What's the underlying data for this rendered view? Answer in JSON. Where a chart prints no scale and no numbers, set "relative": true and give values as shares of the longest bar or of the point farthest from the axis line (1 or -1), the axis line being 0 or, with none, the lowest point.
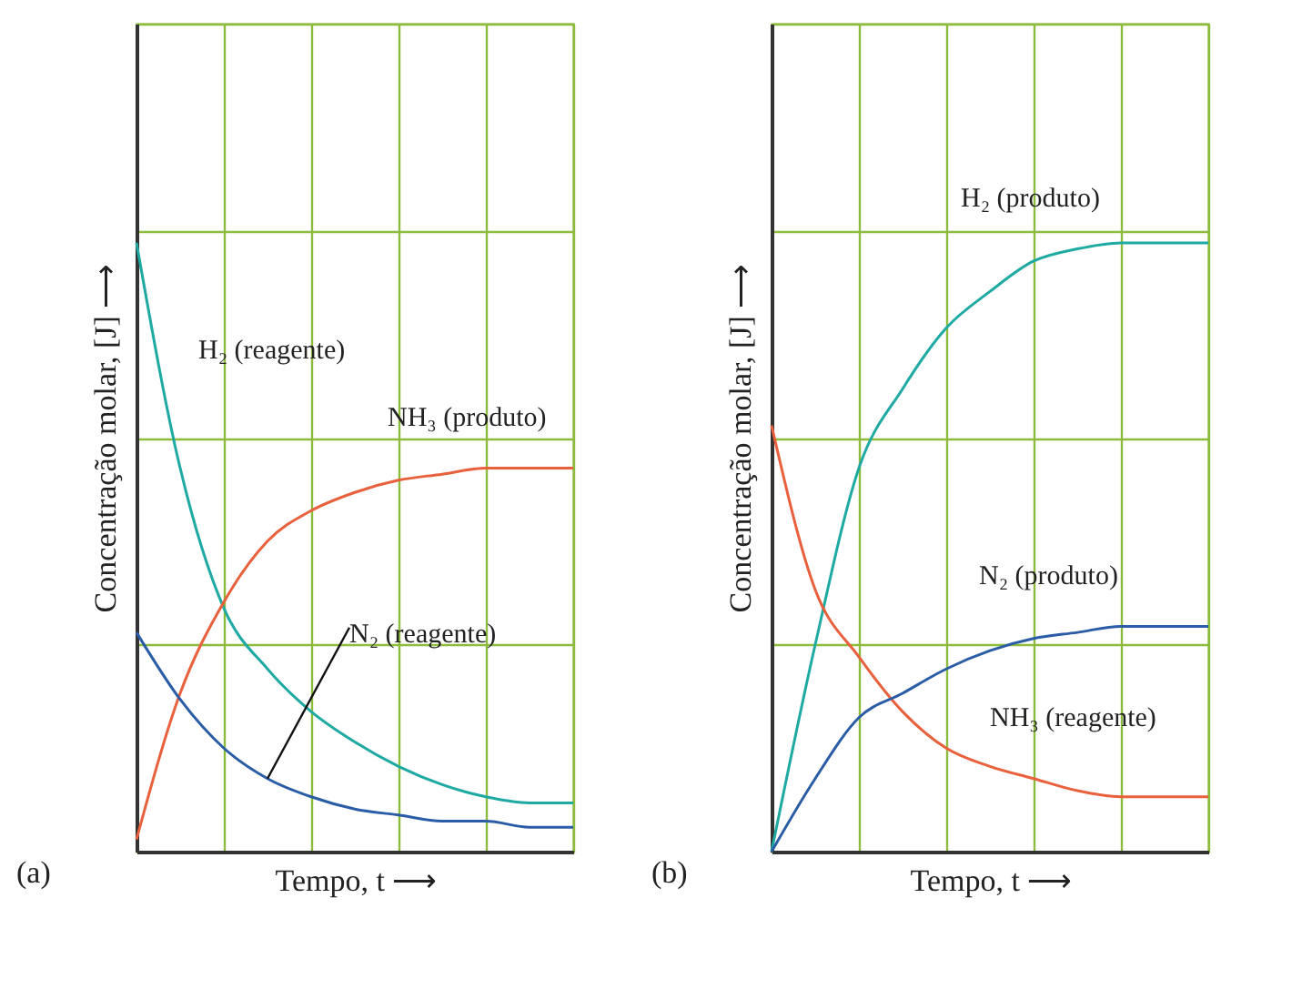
{
  "chart_data": [
    {
      "type": "line",
      "relative": true,
      "xlabel": "Tempo, t ⟶",
      "ylabel": "Concentração molar, [J] ⟶",
      "annotations": [
        "(a)"
      ],
      "grid": true,
      "legend": false,
      "categories": [
        null,
        null,
        null,
        null,
        null,
        null,
        null,
        null,
        null,
        null,
        null
      ],
      "series": [
        {
          "name": "H₂ (reagente)",
          "color": "#1fa9a3",
          "values": [
            1,
            0.63,
            0.4,
            0.3,
            0.23,
            0.18,
            0.14,
            0.11,
            0.09,
            0.08,
            0.08
          ]
        },
        {
          "name": "NH₃ (produto)",
          "color": "#e8603c",
          "values": [
            0.02,
            0.26,
            0.41,
            0.51,
            0.56,
            0.59,
            0.61,
            0.62,
            0.63,
            0.63,
            0.63
          ]
        },
        {
          "name": "N₂ (reagente)",
          "color": "#2b5ca6",
          "values": [
            0.36,
            0.25,
            0.17,
            0.12,
            0.09,
            0.07,
            0.06,
            0.05,
            0.05,
            0.04,
            0.04
          ]
        }
      ]
    },
    {
      "type": "line",
      "relative": true,
      "xlabel": "Tempo, t ⟶",
      "ylabel": "Concentração molar, [J] ⟶",
      "annotations": [
        "(b)"
      ],
      "grid": true,
      "legend": false,
      "categories": [
        null,
        null,
        null,
        null,
        null,
        null,
        null,
        null,
        null,
        null,
        null
      ],
      "series": [
        {
          "name": "H₂ (produto)",
          "color": "#1fa9a3",
          "values": [
            0,
            0.34,
            0.63,
            0.76,
            0.86,
            0.92,
            0.97,
            0.99,
            1,
            1,
            1
          ]
        },
        {
          "name": "NH₃ (reagente)",
          "color": "#e8603c",
          "values": [
            0.7,
            0.43,
            0.32,
            0.23,
            0.17,
            0.14,
            0.12,
            0.1,
            0.09,
            0.09,
            0.09
          ]
        },
        {
          "name": "N₂ (produto)",
          "color": "#2b5ca6",
          "values": [
            0,
            0.12,
            0.22,
            0.26,
            0.3,
            0.33,
            0.35,
            0.36,
            0.37,
            0.37,
            0.37
          ]
        }
      ]
    }
  ]
}
